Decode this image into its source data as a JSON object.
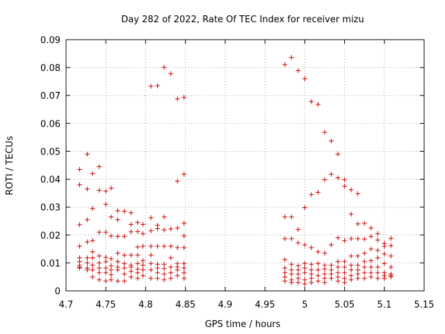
{
  "chart_data": {
    "type": "scatter",
    "title": "Day 282 of 2022, Rate Of TEC Index for receiver mizu",
    "xlabel": "GPS time / hours",
    "ylabel": "ROTI / TECUs",
    "xlim": [
      4.7,
      5.15
    ],
    "ylim": [
      0,
      0.09
    ],
    "x_ticks": [
      "4.7",
      "4.75",
      "4.8",
      "4.85",
      "4.9",
      "4.95",
      "5",
      "5.05",
      "5.1",
      "5.15"
    ],
    "y_ticks": [
      "0",
      "0.01",
      "0.02",
      "0.03",
      "0.04",
      "0.05",
      "0.06",
      "0.07",
      "0.08",
      "0.09"
    ],
    "grid": true,
    "marker": "+",
    "color": "#cc0000",
    "points": [
      [
        4.717,
        0.0435
      ],
      [
        4.717,
        0.038
      ],
      [
        4.717,
        0.0237
      ],
      [
        4.717,
        0.016
      ],
      [
        4.717,
        0.0118
      ],
      [
        4.717,
        0.0105
      ],
      [
        4.717,
        0.0092
      ],
      [
        4.717,
        0.0085
      ],
      [
        4.717,
        0.0082
      ],
      [
        4.7267,
        0.049
      ],
      [
        4.7267,
        0.0365
      ],
      [
        4.7267,
        0.0255
      ],
      [
        4.7267,
        0.0175
      ],
      [
        4.7267,
        0.0118
      ],
      [
        4.7267,
        0.01
      ],
      [
        4.7267,
        0.0082
      ],
      [
        4.7267,
        0.0075
      ],
      [
        4.7333,
        0.042
      ],
      [
        4.7333,
        0.0295
      ],
      [
        4.7333,
        0.018
      ],
      [
        4.7333,
        0.014
      ],
      [
        4.7333,
        0.0118
      ],
      [
        4.7333,
        0.0092
      ],
      [
        4.7333,
        0.0075
      ],
      [
        4.7333,
        0.005
      ],
      [
        4.7417,
        0.0445
      ],
      [
        4.7417,
        0.036
      ],
      [
        4.7417,
        0.021
      ],
      [
        4.7417,
        0.0125
      ],
      [
        4.7417,
        0.01
      ],
      [
        4.7417,
        0.0082
      ],
      [
        4.7417,
        0.0065
      ],
      [
        4.7417,
        0.004
      ],
      [
        4.75,
        0.0357
      ],
      [
        4.75,
        0.031
      ],
      [
        4.75,
        0.021
      ],
      [
        4.75,
        0.012
      ],
      [
        4.75,
        0.0105
      ],
      [
        4.75,
        0.0082
      ],
      [
        4.75,
        0.0065
      ],
      [
        4.75,
        0.0035
      ],
      [
        4.7567,
        0.0368
      ],
      [
        4.7567,
        0.0265
      ],
      [
        4.7567,
        0.0197
      ],
      [
        4.7567,
        0.0115
      ],
      [
        4.7567,
        0.009
      ],
      [
        4.7567,
        0.0075
      ],
      [
        4.7567,
        0.0058
      ],
      [
        4.7567,
        0.004
      ],
      [
        4.765,
        0.0287
      ],
      [
        4.765,
        0.0255
      ],
      [
        4.765,
        0.0195
      ],
      [
        4.765,
        0.0135
      ],
      [
        4.765,
        0.0105
      ],
      [
        4.765,
        0.0085
      ],
      [
        4.765,
        0.0075
      ],
      [
        4.765,
        0.0035
      ],
      [
        4.7733,
        0.0285
      ],
      [
        4.7733,
        0.0195
      ],
      [
        4.7733,
        0.0128
      ],
      [
        4.7733,
        0.0098
      ],
      [
        4.7733,
        0.0082
      ],
      [
        4.7733,
        0.006
      ],
      [
        4.7733,
        0.0035
      ],
      [
        4.7817,
        0.028
      ],
      [
        4.7817,
        0.0238
      ],
      [
        4.7817,
        0.0212
      ],
      [
        4.7817,
        0.0128
      ],
      [
        4.7817,
        0.0092
      ],
      [
        4.7817,
        0.0085
      ],
      [
        4.7817,
        0.007
      ],
      [
        4.7817,
        0.005
      ],
      [
        4.79,
        0.0245
      ],
      [
        4.79,
        0.0213
      ],
      [
        4.79,
        0.0157
      ],
      [
        4.79,
        0.0128
      ],
      [
        4.79,
        0.0098
      ],
      [
        4.79,
        0.0078
      ],
      [
        4.79,
        0.0065
      ],
      [
        4.79,
        0.0045
      ],
      [
        4.7967,
        0.0238
      ],
      [
        4.7967,
        0.0205
      ],
      [
        4.7967,
        0.016
      ],
      [
        4.7967,
        0.0108
      ],
      [
        4.7967,
        0.0092
      ],
      [
        4.7967,
        0.0075
      ],
      [
        4.7967,
        0.0055
      ],
      [
        4.8067,
        0.0733
      ],
      [
        4.8067,
        0.0262
      ],
      [
        4.8067,
        0.0215
      ],
      [
        4.8067,
        0.016
      ],
      [
        4.8067,
        0.0128
      ],
      [
        4.8067,
        0.0098
      ],
      [
        4.8067,
        0.0075
      ],
      [
        4.8067,
        0.0045
      ],
      [
        4.815,
        0.0735
      ],
      [
        4.815,
        0.0235
      ],
      [
        4.815,
        0.0223
      ],
      [
        4.815,
        0.016
      ],
      [
        4.815,
        0.0095
      ],
      [
        4.815,
        0.0082
      ],
      [
        4.815,
        0.0065
      ],
      [
        4.815,
        0.0045
      ],
      [
        4.8233,
        0.0801
      ],
      [
        4.8233,
        0.0265
      ],
      [
        4.8233,
        0.0218
      ],
      [
        4.8233,
        0.016
      ],
      [
        4.8233,
        0.0095
      ],
      [
        4.8233,
        0.008
      ],
      [
        4.8233,
        0.006
      ],
      [
        4.8233,
        0.004
      ],
      [
        4.8317,
        0.0778
      ],
      [
        4.8317,
        0.0222
      ],
      [
        4.8317,
        0.016
      ],
      [
        4.8317,
        0.0118
      ],
      [
        4.8317,
        0.0085
      ],
      [
        4.8317,
        0.0065
      ],
      [
        4.8317,
        0.0045
      ],
      [
        4.84,
        0.0688
      ],
      [
        4.84,
        0.0393
      ],
      [
        4.84,
        0.0225
      ],
      [
        4.84,
        0.0155
      ],
      [
        4.84,
        0.0098
      ],
      [
        4.84,
        0.0085
      ],
      [
        4.84,
        0.0075
      ],
      [
        4.84,
        0.0055
      ],
      [
        4.8483,
        0.0693
      ],
      [
        4.8483,
        0.0418
      ],
      [
        4.8483,
        0.0242
      ],
      [
        4.8483,
        0.0197
      ],
      [
        4.8483,
        0.0155
      ],
      [
        4.8483,
        0.0098
      ],
      [
        4.8483,
        0.0082
      ],
      [
        4.8483,
        0.0065
      ],
      [
        4.8483,
        0.0045
      ],
      [
        4.975,
        0.0811
      ],
      [
        4.975,
        0.0265
      ],
      [
        4.975,
        0.0187
      ],
      [
        4.975,
        0.0112
      ],
      [
        4.975,
        0.0082
      ],
      [
        4.975,
        0.0065
      ],
      [
        4.975,
        0.005
      ],
      [
        4.975,
        0.0035
      ],
      [
        4.9833,
        0.0836
      ],
      [
        4.9833,
        0.0265
      ],
      [
        4.9833,
        0.0187
      ],
      [
        4.9833,
        0.0095
      ],
      [
        4.9833,
        0.0075
      ],
      [
        4.9833,
        0.006
      ],
      [
        4.9833,
        0.004
      ],
      [
        4.9833,
        0.003
      ],
      [
        4.9917,
        0.0789
      ],
      [
        4.9917,
        0.022
      ],
      [
        4.9917,
        0.0172
      ],
      [
        4.9917,
        0.009
      ],
      [
        4.9917,
        0.0075
      ],
      [
        4.9917,
        0.006
      ],
      [
        4.9917,
        0.0045
      ],
      [
        4.9917,
        0.003
      ],
      [
        5.0,
        0.076
      ],
      [
        5.0,
        0.0298
      ],
      [
        5.0,
        0.0165
      ],
      [
        5.0,
        0.0098
      ],
      [
        5.0,
        0.0082
      ],
      [
        5.0,
        0.0065
      ],
      [
        5.0,
        0.004
      ],
      [
        5.0,
        0.0025
      ],
      [
        5.0083,
        0.0678
      ],
      [
        5.0083,
        0.0345
      ],
      [
        5.0083,
        0.0155
      ],
      [
        5.0083,
        0.0095
      ],
      [
        5.0083,
        0.0075
      ],
      [
        5.0083,
        0.006
      ],
      [
        5.0083,
        0.0045
      ],
      [
        5.0083,
        0.003
      ],
      [
        5.0167,
        0.0668
      ],
      [
        5.0167,
        0.0353
      ],
      [
        5.0167,
        0.014
      ],
      [
        5.0167,
        0.0098
      ],
      [
        5.0167,
        0.0075
      ],
      [
        5.0167,
        0.0055
      ],
      [
        5.0167,
        0.0035
      ],
      [
        5.025,
        0.0568
      ],
      [
        5.025,
        0.0398
      ],
      [
        5.025,
        0.0135
      ],
      [
        5.025,
        0.0092
      ],
      [
        5.025,
        0.0078
      ],
      [
        5.025,
        0.006
      ],
      [
        5.025,
        0.0045
      ],
      [
        5.025,
        0.003
      ],
      [
        5.0333,
        0.0537
      ],
      [
        5.0333,
        0.0418
      ],
      [
        5.0333,
        0.0165
      ],
      [
        5.0333,
        0.0092
      ],
      [
        5.0333,
        0.0075
      ],
      [
        5.0333,
        0.006
      ],
      [
        5.0333,
        0.0045
      ],
      [
        5.0417,
        0.049
      ],
      [
        5.0417,
        0.0405
      ],
      [
        5.0417,
        0.019
      ],
      [
        5.0417,
        0.0105
      ],
      [
        5.0417,
        0.0085
      ],
      [
        5.0417,
        0.0065
      ],
      [
        5.0417,
        0.005
      ],
      [
        5.0417,
        0.0035
      ],
      [
        5.05,
        0.0398
      ],
      [
        5.05,
        0.0375
      ],
      [
        5.05,
        0.018
      ],
      [
        5.05,
        0.0105
      ],
      [
        5.05,
        0.0085
      ],
      [
        5.05,
        0.0065
      ],
      [
        5.05,
        0.0045
      ],
      [
        5.05,
        0.003
      ],
      [
        5.0583,
        0.0362
      ],
      [
        5.0583,
        0.0275
      ],
      [
        5.0583,
        0.0187
      ],
      [
        5.0583,
        0.0125
      ],
      [
        5.0583,
        0.0092
      ],
      [
        5.0583,
        0.0075
      ],
      [
        5.0583,
        0.0055
      ],
      [
        5.0583,
        0.004
      ],
      [
        5.0667,
        0.0348
      ],
      [
        5.0667,
        0.024
      ],
      [
        5.0667,
        0.0187
      ],
      [
        5.0667,
        0.0125
      ],
      [
        5.0667,
        0.0092
      ],
      [
        5.0667,
        0.0075
      ],
      [
        5.0667,
        0.006
      ],
      [
        5.0667,
        0.0045
      ],
      [
        5.075,
        0.0242
      ],
      [
        5.075,
        0.0185
      ],
      [
        5.075,
        0.0135
      ],
      [
        5.075,
        0.0105
      ],
      [
        5.075,
        0.0085
      ],
      [
        5.075,
        0.0065
      ],
      [
        5.075,
        0.0045
      ],
      [
        5.0833,
        0.0225
      ],
      [
        5.0833,
        0.0195
      ],
      [
        5.0833,
        0.015
      ],
      [
        5.0833,
        0.0108
      ],
      [
        5.0833,
        0.0085
      ],
      [
        5.0833,
        0.0065
      ],
      [
        5.0833,
        0.005
      ],
      [
        5.0917,
        0.0205
      ],
      [
        5.0917,
        0.0182
      ],
      [
        5.0917,
        0.0145
      ],
      [
        5.0917,
        0.0118
      ],
      [
        5.0917,
        0.0085
      ],
      [
        5.0917,
        0.0065
      ],
      [
        5.0917,
        0.0045
      ],
      [
        5.1,
        0.017
      ],
      [
        5.1,
        0.016
      ],
      [
        5.1,
        0.0132
      ],
      [
        5.1,
        0.0098
      ],
      [
        5.1,
        0.0065
      ],
      [
        5.1,
        0.0055
      ],
      [
        5.1,
        0.0045
      ],
      [
        5.1083,
        0.0188
      ],
      [
        5.1083,
        0.0162
      ],
      [
        5.1083,
        0.0125
      ],
      [
        5.1083,
        0.0085
      ],
      [
        5.1083,
        0.006
      ],
      [
        5.1083,
        0.0055
      ],
      [
        5.1083,
        0.005
      ]
    ]
  }
}
